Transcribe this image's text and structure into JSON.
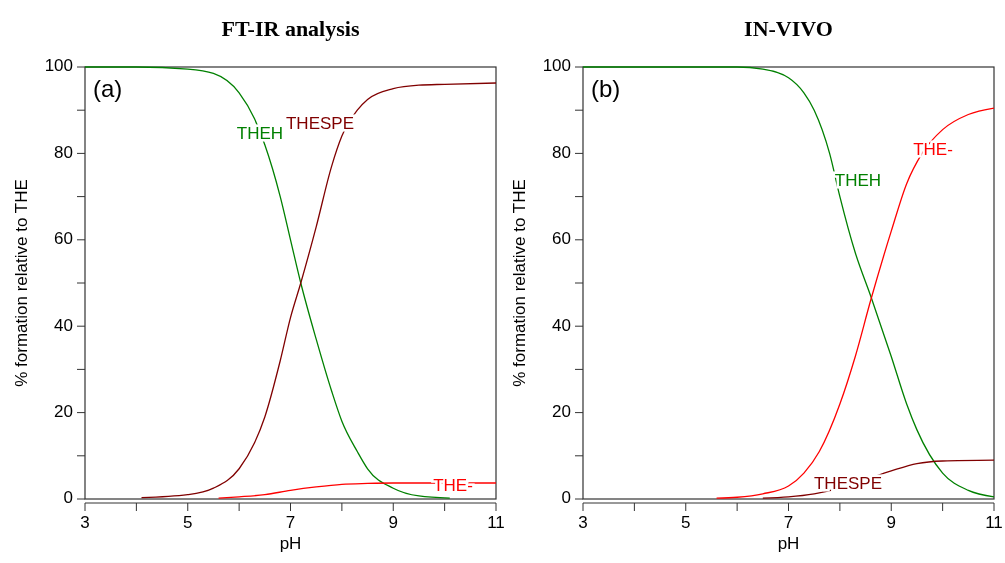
{
  "chart_data": [
    {
      "type": "line",
      "title": "FT-IR analysis",
      "xlabel": "pH",
      "ylabel": "% formation relative to THE",
      "annotations": [
        "(a)"
      ],
      "xlim": [
        3,
        11
      ],
      "ylim": [
        0,
        100
      ],
      "xticks": [
        3,
        {
          "value": 4,
          "label": null
        },
        5,
        {
          "value": 6,
          "label": null
        },
        7,
        {
          "value": 8,
          "label": null
        },
        9,
        {
          "value": 10,
          "label": null
        },
        11
      ],
      "yticks": [
        0,
        {
          "value": 10,
          "label": null
        },
        20,
        {
          "value": 30,
          "label": null
        },
        40,
        {
          "value": 50,
          "label": null
        },
        60,
        {
          "value": 70,
          "label": null
        },
        80,
        {
          "value": 90,
          "label": null
        },
        100
      ],
      "grid": false,
      "marker": "none",
      "line_style": "solid",
      "series": [
        {
          "name": "THEH",
          "color": "#008000",
          "x": [
            3,
            4,
            5,
            5.5,
            6,
            6.3,
            6.5,
            6.8,
            7,
            7.2,
            7.5,
            7.8,
            8,
            8.3,
            8.5,
            9,
            9.5,
            10.1
          ],
          "values": [
            100,
            100,
            99.5,
            98.5,
            94,
            88,
            82,
            70,
            60,
            50,
            37,
            25,
            18,
            11,
            7,
            2.5,
            0.7,
            0.2
          ]
        },
        {
          "name": "THESPE",
          "color": "#800000",
          "x": [
            4.1,
            5,
            5.5,
            6,
            6.3,
            6.5,
            6.8,
            7,
            7.2,
            7.5,
            7.8,
            8,
            8.3,
            8.5,
            9,
            9.5,
            10,
            11
          ],
          "values": [
            0.3,
            1,
            2.5,
            7,
            13,
            19,
            32,
            42,
            50,
            63,
            77,
            84,
            90,
            92.5,
            95,
            95.8,
            96,
            96.3
          ]
        },
        {
          "name": "THE-",
          "color": "#ff0000",
          "x": [
            5.6,
            6,
            6.5,
            7,
            7.5,
            8,
            8.5,
            9,
            11
          ],
          "values": [
            0.2,
            0.5,
            1,
            2,
            2.8,
            3.4,
            3.6,
            3.7,
            3.7
          ]
        }
      ]
    },
    {
      "type": "line",
      "title": "IN-VIVO",
      "xlabel": "pH",
      "ylabel": "% formation relative to THE",
      "annotations": [
        "(b)"
      ],
      "xlim": [
        3,
        11
      ],
      "ylim": [
        0,
        100
      ],
      "xticks": [
        3,
        {
          "value": 4,
          "label": null
        },
        5,
        {
          "value": 6,
          "label": null
        },
        7,
        {
          "value": 8,
          "label": null
        },
        9,
        {
          "value": 10,
          "label": null
        },
        11
      ],
      "yticks": [
        0,
        {
          "value": 10,
          "label": null
        },
        20,
        {
          "value": 30,
          "label": null
        },
        40,
        {
          "value": 50,
          "label": null
        },
        60,
        {
          "value": 70,
          "label": null
        },
        80,
        {
          "value": 90,
          "label": null
        },
        100
      ],
      "grid": false,
      "marker": "none",
      "line_style": "solid",
      "series": [
        {
          "name": "THEH",
          "color": "#008000",
          "x": [
            3,
            6,
            6.5,
            7,
            7.3,
            7.5,
            7.8,
            8,
            8.3,
            8.6,
            9,
            9.3,
            9.5,
            10,
            10.5,
            11
          ],
          "values": [
            100,
            100,
            99.5,
            97.5,
            94,
            90,
            80,
            70,
            57,
            47,
            33,
            22,
            16,
            6,
            2,
            0.5
          ]
        },
        {
          "name": "THESPE",
          "color": "#800000",
          "x": [
            6.5,
            7,
            7.5,
            8,
            8.5,
            9,
            9.5,
            10,
            11
          ],
          "values": [
            0.2,
            0.5,
            1.2,
            2.5,
            4.5,
            6.5,
            8.2,
            8.8,
            9
          ]
        },
        {
          "name": "THE-",
          "color": "#ff0000",
          "x": [
            5.6,
            6,
            6.5,
            7,
            7.3,
            7.6,
            8,
            8.3,
            8.6,
            9,
            9.3,
            9.6,
            10,
            10.5,
            11
          ],
          "values": [
            0.2,
            0.4,
            1.2,
            3,
            6,
            11,
            22,
            33,
            46,
            62,
            73,
            80,
            85.5,
            89,
            90.5
          ]
        }
      ]
    }
  ]
}
